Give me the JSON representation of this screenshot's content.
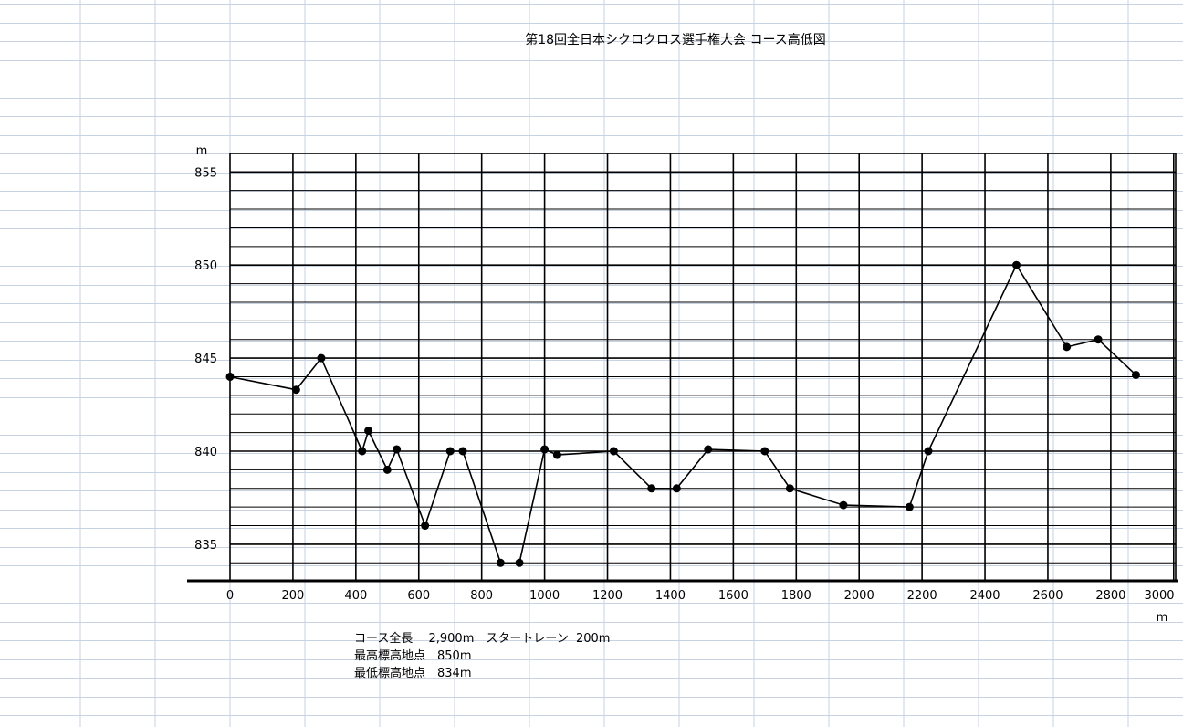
{
  "notes": {
    "line1": "コース全長　 2,900m　スタートレーン  200m",
    "line2": "最高標高地点　850m",
    "line3": "最低標高地点　834m"
  },
  "chart_data": {
    "type": "line",
    "title": "第18回全日本シクロクロス選手権大会 コース高低図",
    "xlabel": "m",
    "ylabel": "m",
    "xlim": [
      0,
      3000
    ],
    "ylim": [
      833,
      856
    ],
    "x_ticks": [
      0,
      200,
      400,
      600,
      800,
      1000,
      1200,
      1400,
      1600,
      1800,
      2000,
      2200,
      2400,
      2600,
      2800,
      3000
    ],
    "x_tick_labels": [
      "0",
      "200",
      "400",
      "600",
      "800",
      "1000",
      "1200",
      "1400",
      "1600",
      "1800",
      "2000",
      "2200",
      "2400",
      "2600",
      "2800",
      "3000"
    ],
    "y_ticks": [
      835,
      840,
      845,
      850,
      855
    ],
    "y_tick_labels": [
      "835",
      "840",
      "845",
      "850",
      "855"
    ],
    "grid": true,
    "series": [
      {
        "x": [
          0,
          210,
          290,
          420,
          440,
          500,
          530,
          620,
          700,
          740,
          860,
          920,
          1000,
          1040,
          1220,
          1340,
          1420,
          1520,
          1700,
          1780,
          1950,
          2160,
          2220,
          2500,
          2660,
          2760,
          2880
        ],
        "y": [
          844,
          843.3,
          845,
          840,
          841.1,
          839,
          840.1,
          836,
          840,
          840,
          834,
          834,
          840.1,
          839.8,
          840,
          838,
          838,
          840.1,
          840,
          838,
          837.1,
          837,
          840,
          850,
          845.6,
          846,
          844.1
        ]
      }
    ]
  }
}
